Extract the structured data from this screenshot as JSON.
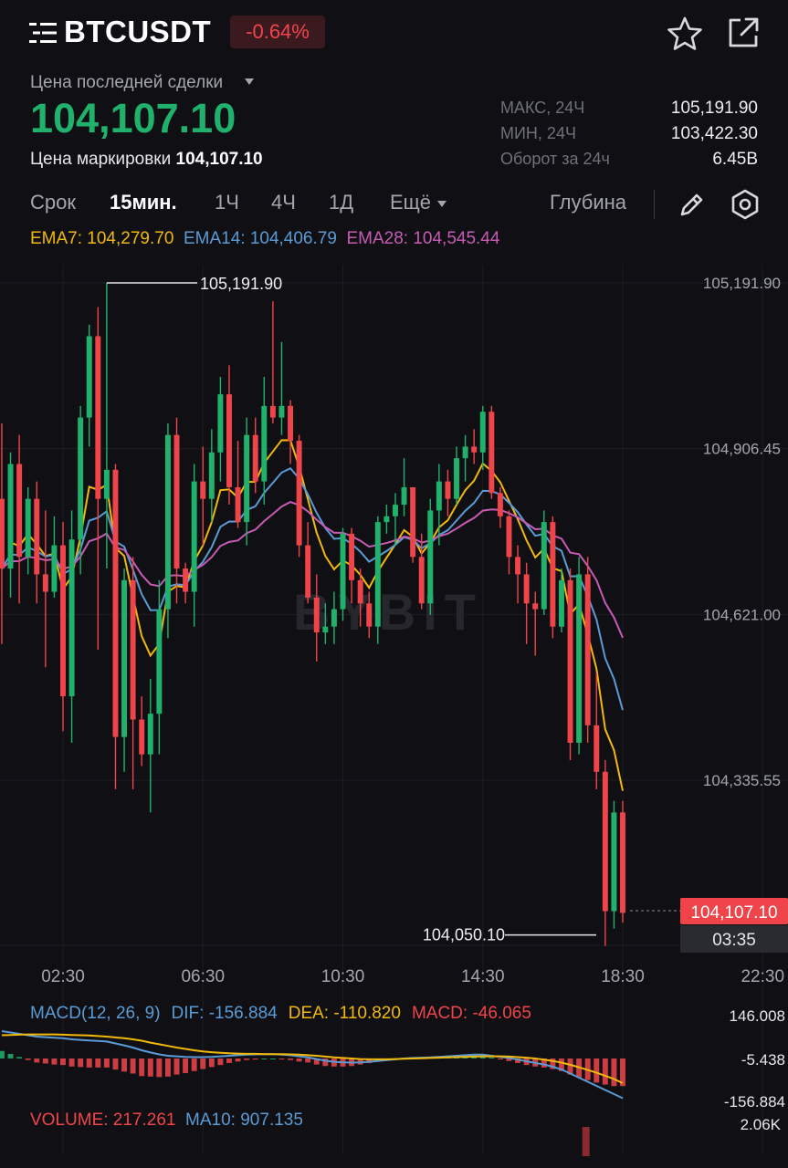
{
  "header": {
    "symbol": "BTCUSDT",
    "change_pct": "-0.64%",
    "icons": [
      "menu-icon",
      "star-icon",
      "share-icon"
    ]
  },
  "price": {
    "last_price_label": "Цена последней сделки",
    "last_price": "104,107.10",
    "mark_price_label": "Цена маркировки",
    "mark_price": "104,107.10"
  },
  "stats": [
    {
      "label": "МАКС, 24Ч",
      "value": "105,191.90"
    },
    {
      "label": "МИН, 24Ч",
      "value": "103,422.30"
    },
    {
      "label": "Оборот за 24ч",
      "value": "6.45B"
    }
  ],
  "timeframes": {
    "period_label": "Срок",
    "items": [
      "15мин.",
      "1Ч",
      "4Ч",
      "1Д"
    ],
    "active": "15мин.",
    "more_label": "Ещё",
    "depth_label": "Глубина",
    "icons": [
      "pencil-icon",
      "settings-icon"
    ]
  },
  "ema_legend": {
    "ema7": "EMA7: 104,279.70",
    "ema14": "EMA14: 104,406.79",
    "ema28": "EMA28: 104,545.44"
  },
  "colors": {
    "up": "#20b26c",
    "down": "#ef454a",
    "ema7": "#f0b90b",
    "ema14": "#5b9bd5",
    "ema28": "#c75bb4",
    "dif": "#5b9bd5",
    "dea": "#f0b90b",
    "background": "#101014"
  },
  "chart_data": {
    "type": "candlestick",
    "interval": "15m",
    "watermark": "BYBIT",
    "x_tick_labels": [
      "02:30",
      "06:30",
      "10:30",
      "14:30",
      "18:30",
      "22:30"
    ],
    "x_ticks_hours": [
      2.5,
      6.5,
      10.5,
      14.5,
      18.5,
      22.5
    ],
    "x_range_hours": [
      0.7,
      23.0
    ],
    "y_tick_labels": [
      "105,191.90",
      "104,906.45",
      "104,621.00",
      "104,335.55"
    ],
    "y_ticks": [
      105191.9,
      104906.45,
      104621.0,
      104335.55
    ],
    "y_range": [
      104013,
      105235
    ],
    "high_marker": {
      "label": "105,191.90",
      "value": 105191.9,
      "hour": 3.75
    },
    "low_marker": {
      "label": "104,050.10",
      "value": 104050.1,
      "hour": 17.5
    },
    "current_price_tag": "104,107.10",
    "current_price": 104107.1,
    "countdown": "03:35",
    "candles": [
      [
        0.75,
        104820,
        104950,
        104570,
        104700
      ],
      [
        1.0,
        104700,
        104900,
        104650,
        104880
      ],
      [
        1.25,
        104880,
        104930,
        104640,
        104720
      ],
      [
        1.5,
        104720,
        104840,
        104690,
        104820
      ],
      [
        1.75,
        104820,
        104850,
        104640,
        104690
      ],
      [
        2.0,
        104690,
        104800,
        104530,
        104660
      ],
      [
        2.25,
        104660,
        104790,
        104650,
        104740
      ],
      [
        2.5,
        104740,
        104780,
        104420,
        104480
      ],
      [
        2.75,
        104480,
        104800,
        104400,
        104750
      ],
      [
        3.0,
        104750,
        104980,
        104690,
        104960
      ],
      [
        3.25,
        104960,
        105120,
        104910,
        105100
      ],
      [
        3.5,
        105100,
        105150,
        104560,
        104820
      ],
      [
        3.75,
        104820,
        105191.9,
        104700,
        104870
      ],
      [
        4.0,
        104870,
        104880,
        104320,
        104410
      ],
      [
        4.25,
        104410,
        104700,
        104350,
        104680
      ],
      [
        4.5,
        104680,
        104720,
        104320,
        104440
      ],
      [
        4.75,
        104440,
        104480,
        104360,
        104380
      ],
      [
        5.0,
        104380,
        104510,
        104280,
        104450
      ],
      [
        5.25,
        104450,
        104680,
        104380,
        104630
      ],
      [
        5.5,
        104630,
        104950,
        104580,
        104930
      ],
      [
        5.75,
        104930,
        104960,
        104640,
        104700
      ],
      [
        6.0,
        104700,
        104710,
        104640,
        104660
      ],
      [
        6.25,
        104660,
        104880,
        104600,
        104850
      ],
      [
        6.5,
        104850,
        104910,
        104740,
        104820
      ],
      [
        6.75,
        104820,
        104940,
        104780,
        104900
      ],
      [
        7.0,
        104900,
        105030,
        104850,
        105000
      ],
      [
        7.25,
        105000,
        105050,
        104810,
        104840
      ],
      [
        7.5,
        104840,
        104920,
        104770,
        104780
      ],
      [
        7.75,
        104780,
        104960,
        104740,
        104930
      ],
      [
        8.0,
        104930,
        104960,
        104830,
        104850
      ],
      [
        8.25,
        104850,
        105030,
        104810,
        104980
      ],
      [
        8.5,
        104980,
        105160,
        104950,
        104960
      ],
      [
        8.75,
        104960,
        105090,
        104930,
        104980
      ],
      [
        9.0,
        104980,
        104990,
        104880,
        104920
      ],
      [
        9.25,
        104920,
        104930,
        104720,
        104740
      ],
      [
        9.5,
        104740,
        104780,
        104640,
        104650
      ],
      [
        9.75,
        104650,
        104690,
        104540,
        104590
      ],
      [
        10.0,
        104590,
        104640,
        104570,
        104600
      ],
      [
        10.25,
        104600,
        104660,
        104570,
        104630
      ],
      [
        10.5,
        104630,
        104770,
        104610,
        104760
      ],
      [
        10.75,
        104760,
        104770,
        104640,
        104680
      ],
      [
        11.0,
        104680,
        104700,
        104600,
        104640
      ],
      [
        11.25,
        104640,
        104660,
        104580,
        104600
      ],
      [
        11.5,
        104600,
        104790,
        104570,
        104780
      ],
      [
        11.75,
        104780,
        104810,
        104760,
        104790
      ],
      [
        12.0,
        104790,
        104830,
        104740,
        104810
      ],
      [
        12.25,
        104810,
        104890,
        104790,
        104840
      ],
      [
        12.5,
        104840,
        104840,
        104710,
        104720
      ],
      [
        12.75,
        104720,
        104760,
        104630,
        104640
      ],
      [
        13.0,
        104640,
        104820,
        104620,
        104800
      ],
      [
        13.25,
        104800,
        104880,
        104740,
        104850
      ],
      [
        13.5,
        104850,
        104870,
        104790,
        104820
      ],
      [
        13.75,
        104820,
        104910,
        104810,
        104890
      ],
      [
        14.0,
        104890,
        104930,
        104850,
        104910
      ],
      [
        14.25,
        104910,
        104940,
        104880,
        104900
      ],
      [
        14.5,
        104900,
        104980,
        104870,
        104970
      ],
      [
        14.75,
        104970,
        104980,
        104820,
        104830
      ],
      [
        15.0,
        104830,
        104840,
        104770,
        104790
      ],
      [
        15.25,
        104790,
        104800,
        104690,
        104720
      ],
      [
        15.5,
        104720,
        104740,
        104640,
        104690
      ],
      [
        15.75,
        104690,
        104710,
        104570,
        104640
      ],
      [
        16.0,
        104640,
        104660,
        104550,
        104630
      ],
      [
        16.25,
        104630,
        104800,
        104620,
        104780
      ],
      [
        16.5,
        104780,
        104790,
        104580,
        104600
      ],
      [
        16.75,
        104600,
        104700,
        104590,
        104680
      ],
      [
        17.0,
        104680,
        104700,
        104370,
        104400
      ],
      [
        17.25,
        104400,
        104720,
        104380,
        104690
      ],
      [
        17.5,
        104690,
        104720,
        104400,
        104430
      ],
      [
        17.75,
        104430,
        104520,
        104320,
        104350
      ],
      [
        18.0,
        104350,
        104370,
        104050.1,
        104110
      ],
      [
        18.25,
        104110,
        104300,
        104080,
        104280
      ],
      [
        18.5,
        104280,
        104300,
        104090,
        104107.1
      ]
    ],
    "ema_legend_values": {
      "EMA7": 104279.7,
      "EMA14": 104406.79,
      "EMA28": 104545.44
    }
  },
  "macd": {
    "legend_name": "MACD(12, 26, 9)",
    "dif_label": "DIF: -156.884",
    "dea_label": "DEA: -110.820",
    "macd_label": "MACD: -46.065",
    "scale_top": "146.008",
    "scale_mid": "-5.438",
    "scale_bottom": "-156.884",
    "range": [
      -170,
      160
    ],
    "dif": [
      100,
      95,
      90,
      85,
      80,
      78,
      76,
      74,
      70,
      68,
      66,
      64,
      62,
      55,
      48,
      40,
      30,
      22,
      15,
      10,
      8,
      6,
      5,
      5,
      6,
      8,
      10,
      12,
      14,
      15,
      16,
      16,
      14,
      12,
      8,
      4,
      -2,
      -8,
      -12,
      -14,
      -15,
      -14,
      -12,
      -9,
      -6,
      -3,
      0,
      2,
      3,
      4,
      6,
      8,
      10,
      12,
      14,
      14,
      10,
      6,
      2,
      -4,
      -10,
      -16,
      -22,
      -30,
      -40,
      -55,
      -70,
      -85,
      -100,
      -115,
      -130,
      -145,
      -156.884
    ],
    "dea": [
      85,
      86,
      87,
      88,
      88,
      88,
      88,
      87,
      86,
      85,
      84,
      82,
      80,
      77,
      74,
      70,
      65,
      58,
      52,
      46,
      40,
      35,
      30,
      26,
      23,
      21,
      19,
      18,
      17,
      17,
      16,
      16,
      16,
      15,
      14,
      12,
      10,
      7,
      4,
      2,
      0,
      -2,
      -3,
      -3,
      -3,
      -2,
      -1,
      0,
      1,
      2,
      3,
      4,
      5,
      6,
      7,
      8,
      8,
      8,
      7,
      5,
      3,
      0,
      -4,
      -9,
      -15,
      -23,
      -32,
      -42,
      -52,
      -63,
      -75,
      -90,
      -110.82
    ]
  },
  "volume": {
    "volume_label": "VOLUME: 217.261",
    "ma10_label": "MA10: 907.135",
    "scale_top": "2.06K",
    "bars": [
      {
        "hour": 17.5,
        "fraction": 0.8
      }
    ]
  }
}
